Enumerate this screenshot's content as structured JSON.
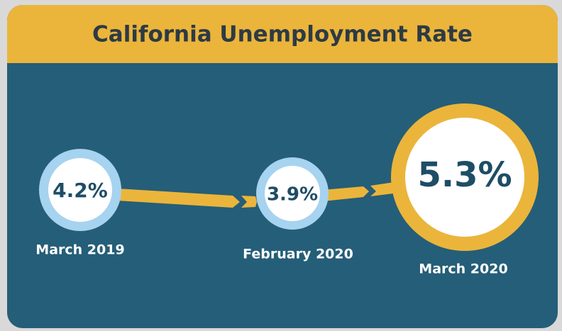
{
  "title": "California Unemployment Rate",
  "items": [
    {
      "value": "4.2%",
      "label": "March 2019"
    },
    {
      "value": "3.9%",
      "label": "February 2020"
    },
    {
      "value": "5.3%",
      "label": "March 2020"
    }
  ]
}
